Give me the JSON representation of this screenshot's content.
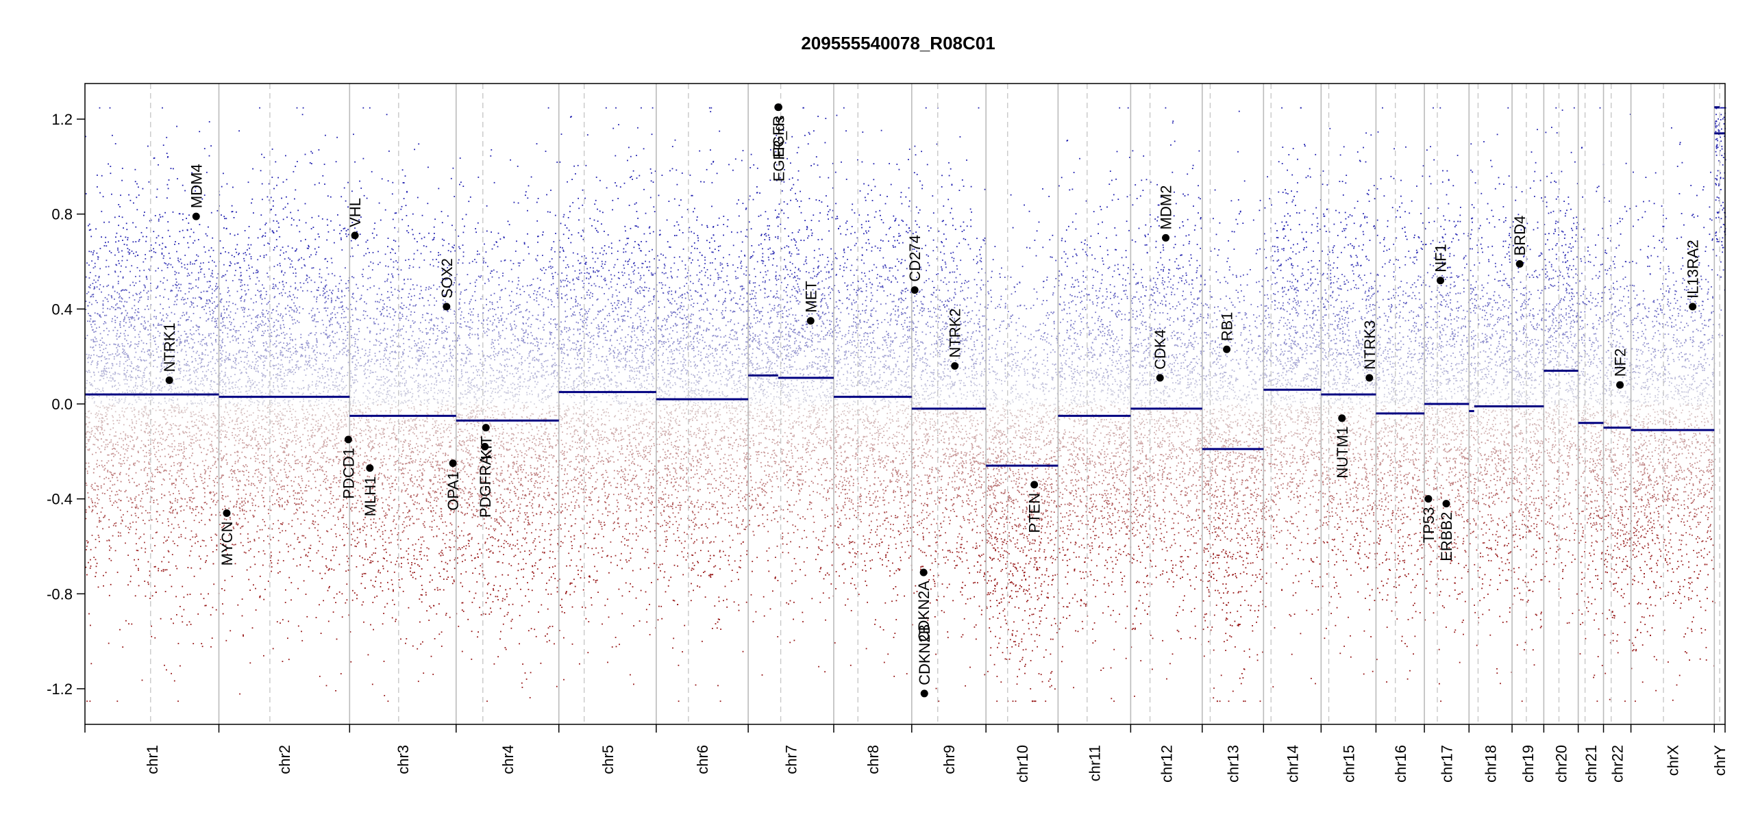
{
  "chart_data": {
    "type": "scatter",
    "title": "209555540078_R08C01",
    "xlabel": "",
    "ylabel": "",
    "ylim": [
      -1.35,
      1.35
    ],
    "yticks": [
      "-1.2",
      "-0.8",
      "-0.4",
      "0.0",
      "0.4",
      "0.8",
      "1.2"
    ],
    "grid": false,
    "colors": {
      "gain": "#2b2bb0",
      "loss": "#a02020",
      "segment": "#000080",
      "gene": "#000000",
      "separator": "#bbbbbb"
    },
    "chromosomes": [
      {
        "name": "chr1",
        "length": 249,
        "centromere": 0.49,
        "segments": [
          {
            "start": 0,
            "end": 1,
            "value": 0.04
          }
        ]
      },
      {
        "name": "chr2",
        "length": 243,
        "centromere": 0.39,
        "segments": [
          {
            "start": 0,
            "end": 1,
            "value": 0.03
          }
        ]
      },
      {
        "name": "chr3",
        "length": 198,
        "centromere": 0.46,
        "segments": [
          {
            "start": 0,
            "end": 1,
            "value": -0.05
          }
        ]
      },
      {
        "name": "chr4",
        "length": 191,
        "centromere": 0.26,
        "segments": [
          {
            "start": 0,
            "end": 1,
            "value": -0.07
          }
        ]
      },
      {
        "name": "chr5",
        "length": 181,
        "centromere": 0.26,
        "segments": [
          {
            "start": 0,
            "end": 1,
            "value": 0.05
          }
        ]
      },
      {
        "name": "chr6",
        "length": 171,
        "centromere": 0.35,
        "segments": [
          {
            "start": 0,
            "end": 1,
            "value": 0.02
          }
        ]
      },
      {
        "name": "chr7",
        "length": 159,
        "centromere": 0.38,
        "segments": [
          {
            "start": 0,
            "end": 0.35,
            "value": 0.12
          },
          {
            "start": 0.35,
            "end": 1,
            "value": 0.11
          }
        ]
      },
      {
        "name": "chr8",
        "length": 145,
        "centromere": 0.31,
        "segments": [
          {
            "start": 0,
            "end": 1,
            "value": 0.03
          }
        ]
      },
      {
        "name": "chr9",
        "length": 138,
        "centromere": 0.35,
        "segments": [
          {
            "start": 0,
            "end": 1,
            "value": -0.02
          }
        ]
      },
      {
        "name": "chr10",
        "length": 134,
        "centromere": 0.3,
        "segments": [
          {
            "start": 0,
            "end": 1,
            "value": -0.26
          }
        ]
      },
      {
        "name": "chr11",
        "length": 135,
        "centromere": 0.4,
        "segments": [
          {
            "start": 0,
            "end": 1,
            "value": -0.05
          }
        ]
      },
      {
        "name": "chr12",
        "length": 133,
        "centromere": 0.27,
        "segments": [
          {
            "start": 0,
            "end": 1,
            "value": -0.02
          }
        ]
      },
      {
        "name": "chr13",
        "length": 114,
        "centromere": 0.13,
        "segments": [
          {
            "start": 0,
            "end": 1,
            "value": -0.19
          }
        ]
      },
      {
        "name": "chr14",
        "length": 107,
        "centromere": 0.13,
        "segments": [
          {
            "start": 0,
            "end": 1,
            "value": 0.06
          }
        ]
      },
      {
        "name": "chr15",
        "length": 102,
        "centromere": 0.14,
        "segments": [
          {
            "start": 0,
            "end": 1,
            "value": 0.04
          }
        ]
      },
      {
        "name": "chr16",
        "length": 90,
        "centromere": 0.4,
        "segments": [
          {
            "start": 0,
            "end": 1,
            "value": -0.04
          }
        ]
      },
      {
        "name": "chr17",
        "length": 83,
        "centromere": 0.29,
        "segments": [
          {
            "start": 0,
            "end": 1,
            "value": 0.0
          }
        ]
      },
      {
        "name": "chr18",
        "length": 80,
        "centromere": 0.21,
        "segments": [
          {
            "start": 0,
            "end": 0.12,
            "value": -0.03
          },
          {
            "start": 0.12,
            "end": 1,
            "value": -0.01
          }
        ]
      },
      {
        "name": "chr19",
        "length": 59,
        "centromere": 0.45,
        "segments": [
          {
            "start": 0,
            "end": 1,
            "value": -0.01
          }
        ]
      },
      {
        "name": "chr20",
        "length": 64,
        "centromere": 0.44,
        "segments": [
          {
            "start": 0,
            "end": 1,
            "value": 0.14
          }
        ]
      },
      {
        "name": "chr21",
        "length": 47,
        "centromere": 0.27,
        "segments": [
          {
            "start": 0,
            "end": 1,
            "value": -0.08
          }
        ]
      },
      {
        "name": "chr22",
        "length": 51,
        "centromere": 0.28,
        "segments": [
          {
            "start": 0,
            "end": 1,
            "value": -0.1
          }
        ]
      },
      {
        "name": "chrX",
        "length": 155,
        "centromere": 0.39,
        "segments": [
          {
            "start": 0,
            "end": 1,
            "value": -0.11
          }
        ]
      },
      {
        "name": "chrY",
        "length": 20,
        "centromere": 0.5,
        "segments": [
          {
            "start": 0,
            "end": 0.5,
            "value": 1.25
          },
          {
            "start": 0,
            "end": 1,
            "value": 1.14
          }
        ]
      }
    ],
    "genes": [
      {
        "name": "NTRK1",
        "chrom": "chr1",
        "pos": 0.63,
        "value": 0.1,
        "side": "above"
      },
      {
        "name": "MDM4",
        "chrom": "chr1",
        "pos": 0.83,
        "value": 0.79,
        "side": "above"
      },
      {
        "name": "MYCN",
        "chrom": "chr2",
        "pos": 0.06,
        "value": -0.46,
        "side": "below"
      },
      {
        "name": "VHL",
        "chrom": "chr3",
        "pos": 0.05,
        "value": 0.71,
        "side": "above"
      },
      {
        "name": "PDCD1",
        "chrom": "chr2",
        "pos": 0.99,
        "value": -0.15,
        "side": "below"
      },
      {
        "name": "MLH1",
        "chrom": "chr3",
        "pos": 0.19,
        "value": -0.27,
        "side": "below"
      },
      {
        "name": "SOX2",
        "chrom": "chr3",
        "pos": 0.91,
        "value": 0.41,
        "side": "above"
      },
      {
        "name": "OPA1",
        "chrom": "chr3",
        "pos": 0.97,
        "value": -0.25,
        "side": "below"
      },
      {
        "name": "PDGFRA",
        "chrom": "chr4",
        "pos": 0.28,
        "value": -0.18,
        "side": "below"
      },
      {
        "name": "KIT",
        "chrom": "chr4",
        "pos": 0.29,
        "value": -0.1,
        "side": "below"
      },
      {
        "name": "EGFR",
        "chrom": "chr7",
        "pos": 0.35,
        "value": 1.25,
        "side": "below"
      },
      {
        "name": "EGFR_ds",
        "chrom": "chr7",
        "pos": 0.355,
        "value": 1.25,
        "side": "below"
      },
      {
        "name": "MET",
        "chrom": "chr7",
        "pos": 0.73,
        "value": 0.35,
        "side": "above"
      },
      {
        "name": "CD274",
        "chrom": "chr9",
        "pos": 0.04,
        "value": 0.48,
        "side": "above"
      },
      {
        "name": "CDKN2A",
        "chrom": "chr9",
        "pos": 0.16,
        "value": -0.71,
        "side": "below"
      },
      {
        "name": "CDKN2B",
        "chrom": "chr9",
        "pos": 0.17,
        "value": -1.22,
        "side": "above"
      },
      {
        "name": "NTRK2",
        "chrom": "chr9",
        "pos": 0.58,
        "value": 0.16,
        "side": "above"
      },
      {
        "name": "PTEN",
        "chrom": "chr10",
        "pos": 0.67,
        "value": -0.34,
        "side": "below"
      },
      {
        "name": "CDK4",
        "chrom": "chr12",
        "pos": 0.41,
        "value": 0.11,
        "side": "above"
      },
      {
        "name": "MDM2",
        "chrom": "chr12",
        "pos": 0.49,
        "value": 0.7,
        "side": "above"
      },
      {
        "name": "RB1",
        "chrom": "chr13",
        "pos": 0.4,
        "value": 0.23,
        "side": "above"
      },
      {
        "name": "NUTM1",
        "chrom": "chr15",
        "pos": 0.38,
        "value": -0.06,
        "side": "below"
      },
      {
        "name": "NTRK3",
        "chrom": "chr15",
        "pos": 0.88,
        "value": 0.11,
        "side": "above"
      },
      {
        "name": "TP53",
        "chrom": "chr17",
        "pos": 0.09,
        "value": -0.4,
        "side": "below"
      },
      {
        "name": "ERBB2",
        "chrom": "chr17",
        "pos": 0.49,
        "value": -0.42,
        "side": "below"
      },
      {
        "name": "NF1",
        "chrom": "chr17",
        "pos": 0.36,
        "value": 0.52,
        "side": "above"
      },
      {
        "name": "BRD4",
        "chrom": "chr19",
        "pos": 0.24,
        "value": 0.59,
        "side": "above"
      },
      {
        "name": "NF2",
        "chrom": "chr22",
        "pos": 0.6,
        "value": 0.08,
        "side": "above"
      },
      {
        "name": "IL13RA2",
        "chrom": "chrX",
        "pos": 0.74,
        "value": 0.41,
        "side": "above"
      }
    ],
    "gene_labels": {
      "NTRK1": "NTRK1",
      "MDM4": "MDM4",
      "MYCN": "MYCN",
      "VHL": "VHL",
      "PDCD1": "PDCD1",
      "MLH1": "MLH1",
      "SOX2": "SOX2",
      "OPA1": "OPA1",
      "PDGFRA": "PDGFRA",
      "KIT": "KIT",
      "EGFR": "EGFR",
      "EGFR_ds": "EGFR_ds",
      "MET": "MET",
      "CD274": "CD274",
      "CDKN2A": "CDKN2A",
      "CDKN2B": "CDKN2B",
      "NTRK2": "NTRK2",
      "PTEN": "PTEN",
      "CDK4": "CDK4",
      "MDM2": "MDM2",
      "RB1": "RB1",
      "NUTM1": "NUTM1",
      "NTRK3": "NTRK3",
      "TP53": "TP53",
      "ERBB2": "ERBB2",
      "NF1": "NF1",
      "BRD4": "BRD4",
      "NF2": "NF2",
      "IL13RA2": "IL13RA2"
    }
  }
}
